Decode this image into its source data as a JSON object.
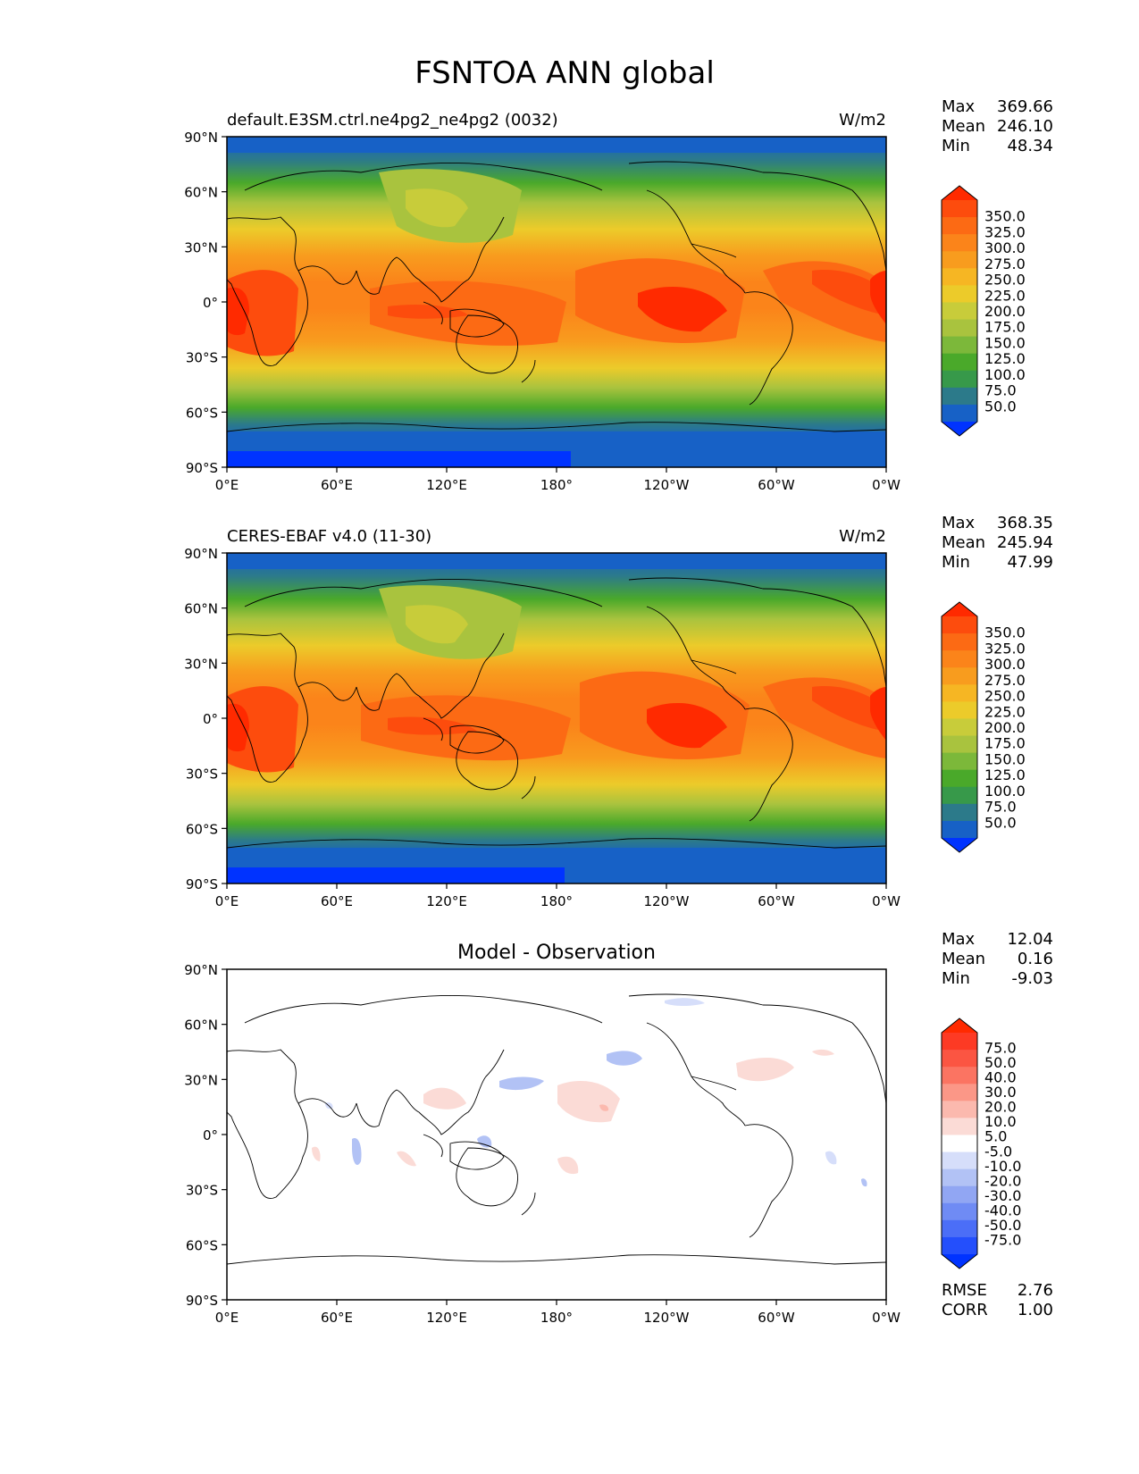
{
  "figure": {
    "title": "FSNTOA ANN global"
  },
  "axes": {
    "lat_ticks": [
      "90°N",
      "60°N",
      "30°N",
      "0°",
      "30°S",
      "60°S",
      "90°S"
    ],
    "lon_ticks": [
      "0°E",
      "60°E",
      "120°E",
      "180°",
      "120°W",
      "60°W",
      "0°W"
    ]
  },
  "colors": {
    "field_ramp": [
      "#0033ff",
      "#1761c6",
      "#2c7a8a",
      "#37994a",
      "#4aa92a",
      "#7cb83a",
      "#a9c33e",
      "#c8cc3a",
      "#eccb2a",
      "#f6b623",
      "#f89c1e",
      "#fb841a",
      "#fc6a14",
      "#fd4c0d",
      "#ff2a00"
    ],
    "diff_ramp": [
      "#0033ff",
      "#244ffc",
      "#4b6ef7",
      "#6f8bf4",
      "#91a6f3",
      "#b2c2f5",
      "#d6defa",
      "#ffffff",
      "#fbdbd6",
      "#fbb9ae",
      "#fb9787",
      "#fb7462",
      "#fb5542",
      "#fd3a24",
      "#ff2a00"
    ],
    "coast": "#000000"
  },
  "panels": [
    {
      "id": "model",
      "left_title": "default.E3SM.ctrl.ne4pg2_ne4pg2 (0032)",
      "center_title": "",
      "units": "W/m2",
      "stats": {
        "max_label": "Max",
        "max": "369.66",
        "mean_label": "Mean",
        "mean": "246.10",
        "min_label": "Min",
        "min": "48.34"
      },
      "colorbar_labels": [
        "350.0",
        "325.0",
        "300.0",
        "275.0",
        "250.0",
        "225.0",
        "200.0",
        "175.0",
        "150.0",
        "125.0",
        "100.0",
        "75.0",
        "50.0"
      ]
    },
    {
      "id": "obs",
      "left_title": "CERES-EBAF v4.0 (11-30)",
      "center_title": "",
      "units": "W/m2",
      "stats": {
        "max_label": "Max",
        "max": "368.35",
        "mean_label": "Mean",
        "mean": "245.94",
        "min_label": "Min",
        "min": "47.99"
      },
      "colorbar_labels": [
        "350.0",
        "325.0",
        "300.0",
        "275.0",
        "250.0",
        "225.0",
        "200.0",
        "175.0",
        "150.0",
        "125.0",
        "100.0",
        "75.0",
        "50.0"
      ]
    },
    {
      "id": "diff",
      "left_title": "",
      "center_title": "Model - Observation",
      "units": "",
      "stats": {
        "max_label": "Max",
        "max": "12.04",
        "mean_label": "Mean",
        "mean": "0.16",
        "min_label": "Min",
        "min": "-9.03"
      },
      "colorbar_labels": [
        "75.0",
        "50.0",
        "40.0",
        "30.0",
        "20.0",
        "10.0",
        "5.0",
        "-5.0",
        "-10.0",
        "-20.0",
        "-30.0",
        "-40.0",
        "-50.0",
        "-75.0"
      ],
      "extra_stats": {
        "rmse_label": "RMSE",
        "rmse": "2.76",
        "corr_label": "CORR",
        "corr": "1.00"
      }
    }
  ]
}
